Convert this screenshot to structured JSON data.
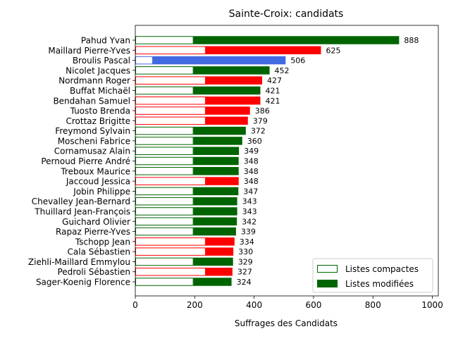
{
  "chart_data": {
    "type": "bar",
    "orientation": "horizontal",
    "title": "Sainte-Croix: candidats",
    "xlabel": "Suffrages des Candidats",
    "ylabel": "",
    "xlim": [
      0,
      1020
    ],
    "xticks": [
      0,
      200,
      400,
      600,
      800,
      1000
    ],
    "grid": false,
    "legend_position": "bottom-right",
    "legend": [
      {
        "label": "Listes compactes",
        "style": "outline",
        "color": "#006400"
      },
      {
        "label": "Listes modifiées",
        "style": "filled",
        "color": "#006400"
      }
    ],
    "colors": {
      "green": "#006400",
      "red": "#ff0000",
      "blue": "#4169e1"
    },
    "candidates": [
      {
        "name": "Pahud Yvan",
        "total": 888,
        "compact": 196,
        "color": "green"
      },
      {
        "name": "Maillard Pierre-Yves",
        "total": 625,
        "compact": 237,
        "color": "red"
      },
      {
        "name": "Broulis Pascal",
        "total": 506,
        "compact": 59,
        "color": "blue"
      },
      {
        "name": "Nicolet Jacques",
        "total": 452,
        "compact": 196,
        "color": "green"
      },
      {
        "name": "Nordmann Roger",
        "total": 427,
        "compact": 237,
        "color": "red"
      },
      {
        "name": "Buffat Michaël",
        "total": 421,
        "compact": 196,
        "color": "green"
      },
      {
        "name": "Bendahan Samuel",
        "total": 421,
        "compact": 237,
        "color": "red"
      },
      {
        "name": "Tuosto Brenda",
        "total": 386,
        "compact": 237,
        "color": "red"
      },
      {
        "name": "Crottaz Brigitte",
        "total": 379,
        "compact": 237,
        "color": "red"
      },
      {
        "name": "Freymond Sylvain",
        "total": 372,
        "compact": 196,
        "color": "green"
      },
      {
        "name": "Moscheni Fabrice",
        "total": 360,
        "compact": 196,
        "color": "green"
      },
      {
        "name": "Cornamusaz Alain",
        "total": 349,
        "compact": 196,
        "color": "green"
      },
      {
        "name": "Pernoud Pierre André",
        "total": 348,
        "compact": 196,
        "color": "green"
      },
      {
        "name": "Treboux Maurice",
        "total": 348,
        "compact": 196,
        "color": "green"
      },
      {
        "name": "Jaccoud Jessica",
        "total": 348,
        "compact": 237,
        "color": "red"
      },
      {
        "name": "Jobin Philippe",
        "total": 347,
        "compact": 196,
        "color": "green"
      },
      {
        "name": "Chevalley Jean-Bernard",
        "total": 343,
        "compact": 196,
        "color": "green"
      },
      {
        "name": "Thuillard Jean-François",
        "total": 343,
        "compact": 196,
        "color": "green"
      },
      {
        "name": "Guichard Olivier",
        "total": 342,
        "compact": 196,
        "color": "green"
      },
      {
        "name": "Rapaz Pierre-Yves",
        "total": 339,
        "compact": 196,
        "color": "green"
      },
      {
        "name": "Tschopp Jean",
        "total": 334,
        "compact": 237,
        "color": "red"
      },
      {
        "name": "Cala Sébastien",
        "total": 330,
        "compact": 237,
        "color": "red"
      },
      {
        "name": "Ziehli-Maillard Emmylou",
        "total": 329,
        "compact": 196,
        "color": "green"
      },
      {
        "name": "Pedroli Sébastien",
        "total": 327,
        "compact": 237,
        "color": "red"
      },
      {
        "name": "Sager-Koenig Florence",
        "total": 324,
        "compact": 196,
        "color": "green"
      }
    ]
  }
}
